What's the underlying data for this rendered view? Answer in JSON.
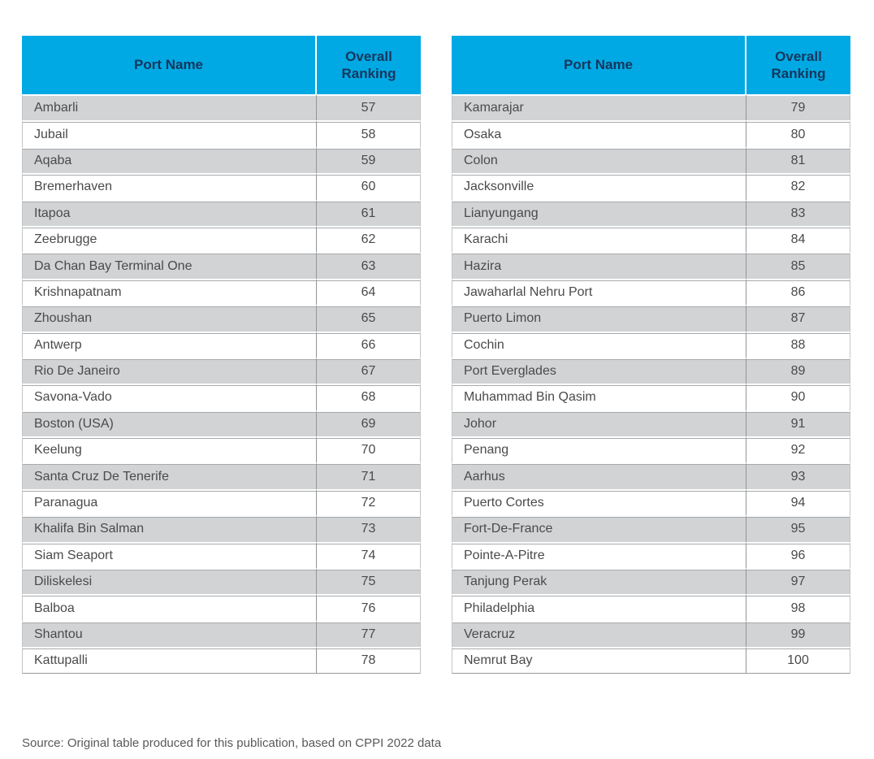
{
  "colors": {
    "header_bg": "#00a9e4",
    "header_text": "#16365c",
    "row_alt_bg": "#d1d3d4",
    "row_bg": "#ffffff",
    "body_text": "#4a4a4c",
    "hairline": "#a7a9ac",
    "column_divider": "#939598",
    "source_text": "#58595b"
  },
  "columns": {
    "port": "Port Name",
    "ranking": "Overall Ranking"
  },
  "tables": [
    {
      "rows": [
        {
          "port": "Ambarli",
          "rank": "57"
        },
        {
          "port": "Jubail",
          "rank": "58"
        },
        {
          "port": "Aqaba",
          "rank": "59"
        },
        {
          "port": "Bremerhaven",
          "rank": "60"
        },
        {
          "port": "Itapoa",
          "rank": "61"
        },
        {
          "port": "Zeebrugge",
          "rank": "62"
        },
        {
          "port": "Da Chan Bay Terminal One",
          "rank": "63"
        },
        {
          "port": "Krishnapatnam",
          "rank": "64"
        },
        {
          "port": "Zhoushan",
          "rank": "65"
        },
        {
          "port": "Antwerp",
          "rank": "66"
        },
        {
          "port": "Rio De Janeiro",
          "rank": "67"
        },
        {
          "port": "Savona-Vado",
          "rank": "68"
        },
        {
          "port": "Boston (USA)",
          "rank": "69"
        },
        {
          "port": "Keelung",
          "rank": "70"
        },
        {
          "port": "Santa Cruz De Tenerife",
          "rank": "71"
        },
        {
          "port": "Paranagua",
          "rank": "72"
        },
        {
          "port": "Khalifa Bin Salman",
          "rank": "73"
        },
        {
          "port": "Siam Seaport",
          "rank": "74"
        },
        {
          "port": "Diliskelesi",
          "rank": "75"
        },
        {
          "port": "Balboa",
          "rank": "76"
        },
        {
          "port": "Shantou",
          "rank": "77"
        },
        {
          "port": "Kattupalli",
          "rank": "78"
        }
      ]
    },
    {
      "rows": [
        {
          "port": "Kamarajar",
          "rank": "79"
        },
        {
          "port": "Osaka",
          "rank": "80"
        },
        {
          "port": "Colon",
          "rank": "81"
        },
        {
          "port": "Jacksonville",
          "rank": "82"
        },
        {
          "port": "Lianyungang",
          "rank": "83"
        },
        {
          "port": "Karachi",
          "rank": "84"
        },
        {
          "port": "Hazira",
          "rank": "85"
        },
        {
          "port": "Jawaharlal Nehru Port",
          "rank": "86"
        },
        {
          "port": "Puerto Limon",
          "rank": "87"
        },
        {
          "port": "Cochin",
          "rank": "88"
        },
        {
          "port": "Port Everglades",
          "rank": "89"
        },
        {
          "port": "Muhammad Bin Qasim",
          "rank": "90"
        },
        {
          "port": "Johor",
          "rank": "91"
        },
        {
          "port": "Penang",
          "rank": "92"
        },
        {
          "port": "Aarhus",
          "rank": "93"
        },
        {
          "port": "Puerto Cortes",
          "rank": "94"
        },
        {
          "port": "Fort-De-France",
          "rank": "95"
        },
        {
          "port": "Pointe-A-Pitre",
          "rank": "96"
        },
        {
          "port": "Tanjung Perak",
          "rank": "97"
        },
        {
          "port": "Philadelphia",
          "rank": "98"
        },
        {
          "port": "Veracruz",
          "rank": "99"
        },
        {
          "port": "Nemrut Bay",
          "rank": "100"
        }
      ]
    }
  ],
  "source_note": "Source: Original table produced for this publication, based on CPPI 2022 data"
}
